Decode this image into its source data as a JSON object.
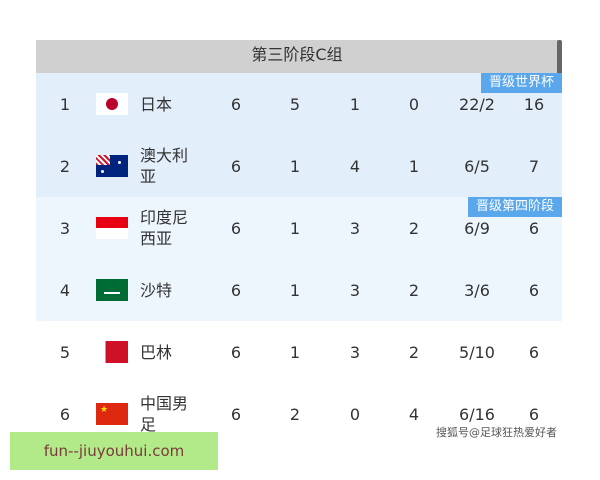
{
  "title": "第三阶段C组",
  "badges": {
    "world_cup": "晋级世界杯",
    "fourth_stage": "晋级第四阶段"
  },
  "rows": [
    {
      "rank": "1",
      "flag": "japan-flag",
      "team": "日本",
      "p": "6",
      "w": "5",
      "d": "1",
      "l": "0",
      "gd": "22/2",
      "pts": "16",
      "bg": "#e3eefb"
    },
    {
      "rank": "2",
      "flag": "australia-flag",
      "team": "澳大利亚",
      "p": "6",
      "w": "1",
      "d": "4",
      "l": "1",
      "gd": "6/5",
      "pts": "7",
      "bg": "#e3eefb"
    },
    {
      "rank": "3",
      "flag": "indonesia-flag",
      "team": "印度尼西亚",
      "p": "6",
      "w": "1",
      "d": "3",
      "l": "2",
      "gd": "6/9",
      "pts": "6",
      "bg": "#edf6fd"
    },
    {
      "rank": "4",
      "flag": "saudi-arabia-flag",
      "team": "沙特",
      "p": "6",
      "w": "1",
      "d": "3",
      "l": "2",
      "gd": "3/6",
      "pts": "6",
      "bg": "#edf6fd"
    },
    {
      "rank": "5",
      "flag": "bahrain-flag",
      "team": "巴林",
      "p": "6",
      "w": "1",
      "d": "3",
      "l": "2",
      "gd": "5/10",
      "pts": "6",
      "bg": "#ffffff"
    },
    {
      "rank": "6",
      "flag": "china-flag",
      "team": "中国男足",
      "p": "6",
      "w": "2",
      "d": "0",
      "l": "4",
      "gd": "6/16",
      "pts": "6",
      "bg": "#ffffff"
    }
  ],
  "watermark": "搜狐号@足球狂热爱好者",
  "site_label": "fun--jiuyouhui.com"
}
